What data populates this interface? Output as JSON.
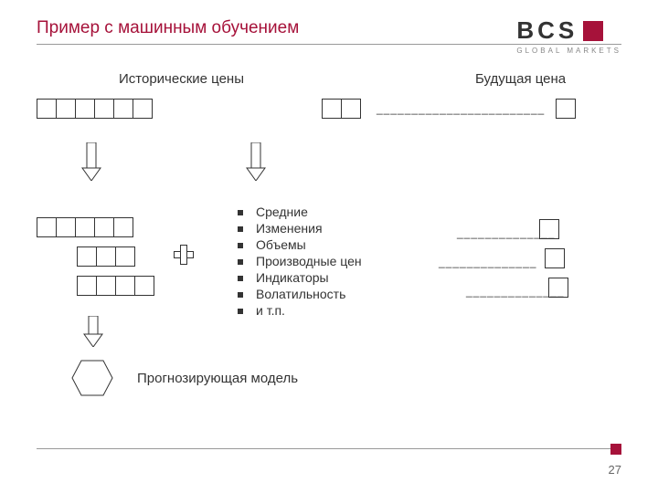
{
  "title": "Пример с машинным обучением",
  "logo": {
    "letters": "BCS",
    "sub": "GLOBAL MARKETS"
  },
  "headings": {
    "left": "Исторические цены",
    "right": "Будущая цена"
  },
  "colors": {
    "accent": "#a6123a",
    "line": "#999999",
    "text": "#333333"
  },
  "topRow": {
    "leftBoxes": 6,
    "rightBoxes": 2,
    "gapPx": 180,
    "dashCount": 12,
    "futureBox": true
  },
  "midLeft": {
    "rows": [
      {
        "boxes": 5,
        "indent": 0
      },
      {
        "boxes": 3,
        "indent": 44
      },
      {
        "boxes": 4,
        "indent": 44
      }
    ]
  },
  "bullets": [
    "Средние",
    "Изменения",
    "Объемы",
    "Производные цен",
    "Индикаторы",
    "Волатильность",
    "и т.п."
  ],
  "midRight": [
    {
      "dash": 7,
      "boxIndent": 0
    },
    {
      "dash": 7,
      "boxIndent": 26
    },
    {
      "dash": 7,
      "boxIndent": 0
    }
  ],
  "modelLabel": "Прогнозирующая модель",
  "pageNum": "27"
}
